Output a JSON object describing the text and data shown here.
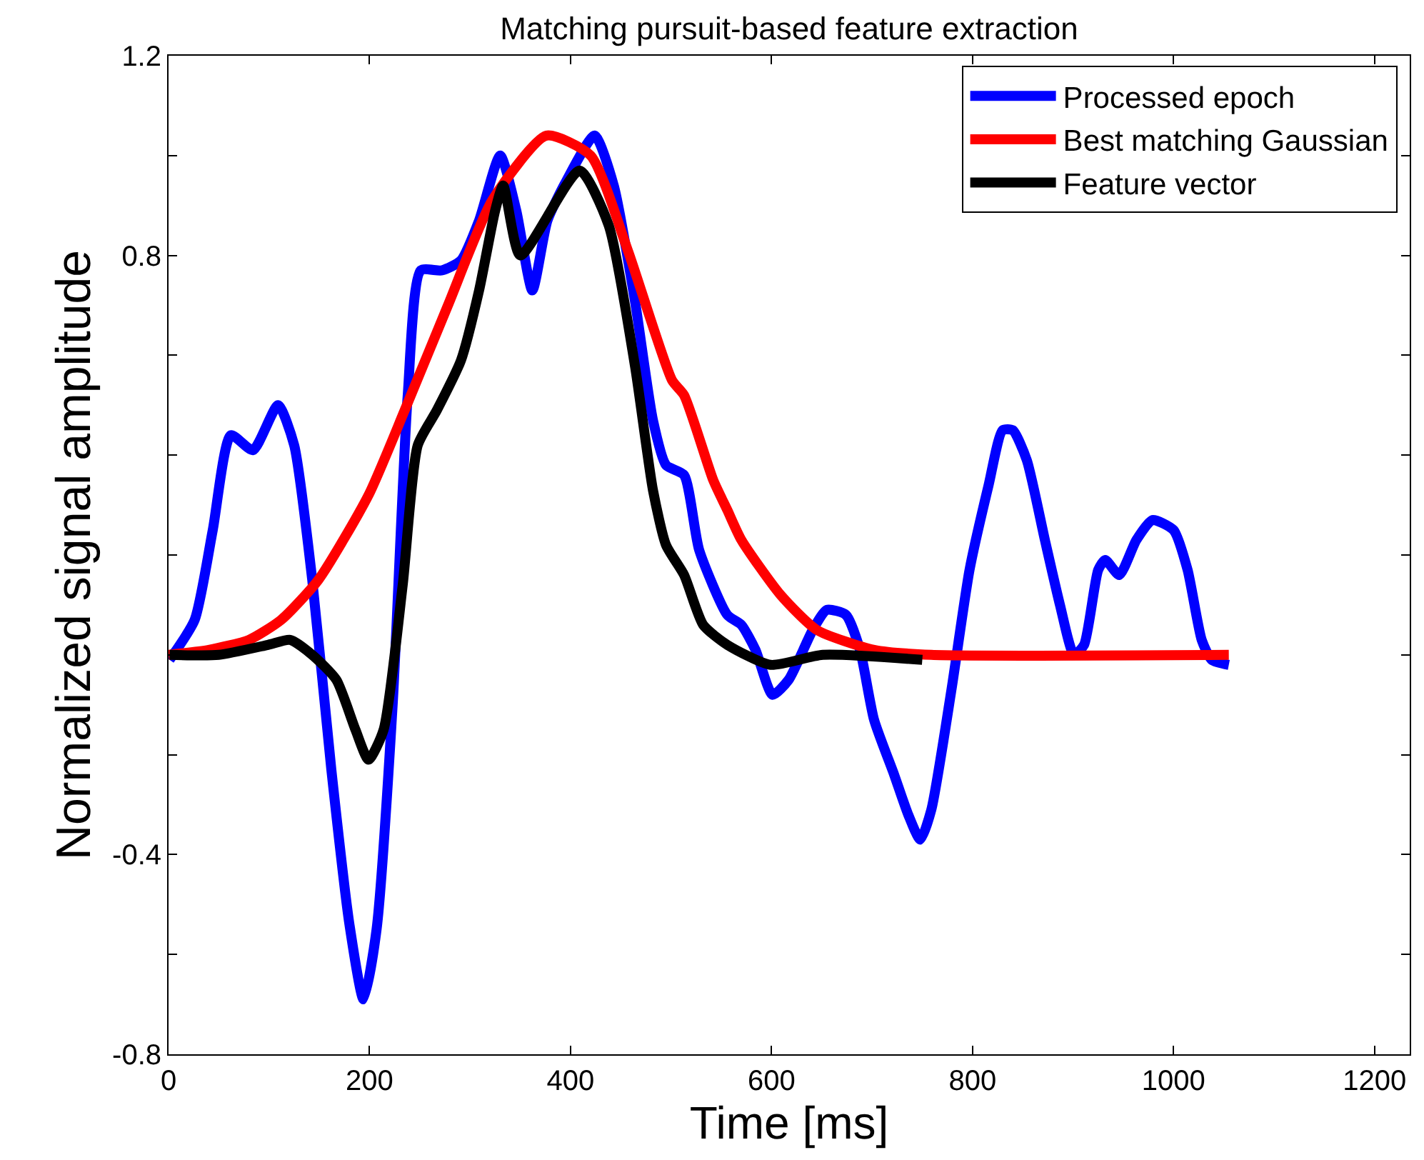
{
  "chart_data": {
    "type": "line",
    "title": "Matching pursuit-based feature extraction",
    "xlabel": "Time [ms]",
    "ylabel": "Normalized signal amplitude",
    "xlim": [
      0,
      1235
    ],
    "xticks": [
      0,
      200,
      400,
      600,
      800,
      1000,
      1200
    ],
    "ylim": [
      -0.8,
      1.2
    ],
    "yticks": [
      {
        "value": -0.8,
        "label": "-0.8"
      },
      {
        "value": -0.6,
        "label": null
      },
      {
        "value": -0.4,
        "label": "-0.4"
      },
      {
        "value": -0.2,
        "label": null
      },
      {
        "value": 0,
        "label": null
      },
      {
        "value": 0.2,
        "label": null
      },
      {
        "value": 0.4,
        "label": null
      },
      {
        "value": 0.6,
        "label": null
      },
      {
        "value": 0.8,
        "label": "0.8"
      },
      {
        "value": 1.0,
        "label": null
      },
      {
        "value": 1.2,
        "label": "1.2"
      }
    ],
    "legend": "top right",
    "marker": "none",
    "line_style": "solid",
    "series": [
      {
        "name": "Processed epoch",
        "color": "#0000ff",
        "x": [
          1,
          26,
          44,
          62,
          84,
          109,
          125,
          143,
          162,
          180,
          194,
          207,
          223,
          238,
          251,
          272,
          291,
          309,
          330,
          346,
          362,
          377,
          396,
          424,
          443,
          464,
          482,
          495,
          513,
          528,
          556,
          570,
          584,
          601,
          617,
          641,
          655,
          674,
          688,
          702,
          722,
          736,
          748,
          759,
          779,
          797,
          816,
          830,
          840,
          854,
          872,
          887,
          901,
          911,
          925,
          932,
          946,
          963,
          979,
          1000,
          1014,
          1028,
          1038,
          1055
        ],
        "values": [
          -0.01,
          0.07,
          0.25,
          0.44,
          0.41,
          0.5,
          0.42,
          0.15,
          -0.23,
          -0.54,
          -0.69,
          -0.55,
          -0.1,
          0.52,
          0.77,
          0.77,
          0.79,
          0.87,
          1.0,
          0.89,
          0.73,
          0.87,
          0.95,
          1.04,
          0.94,
          0.71,
          0.47,
          0.38,
          0.36,
          0.21,
          0.08,
          0.06,
          0.01,
          -0.08,
          -0.05,
          0.05,
          0.09,
          0.08,
          0.01,
          -0.13,
          -0.24,
          -0.32,
          -0.37,
          -0.31,
          -0.07,
          0.17,
          0.34,
          0.45,
          0.45,
          0.39,
          0.23,
          0.1,
          0.0,
          0.02,
          0.17,
          0.19,
          0.16,
          0.23,
          0.27,
          0.25,
          0.17,
          0.03,
          -0.01,
          -0.02
        ]
      },
      {
        "name": "Best matching Gaussian",
        "color": "#ff0000",
        "x": [
          0,
          40,
          80,
          112,
          149,
          199,
          235,
          278,
          322,
          376,
          420,
          457,
          501,
          513,
          542,
          556,
          570,
          609,
          645,
          702,
          759,
          1055
        ],
        "values": [
          0.0,
          0.01,
          0.03,
          0.07,
          0.15,
          0.32,
          0.49,
          0.7,
          0.91,
          1.04,
          1.0,
          0.81,
          0.55,
          0.52,
          0.35,
          0.29,
          0.23,
          0.12,
          0.05,
          0.01,
          0.0,
          0.0
        ]
      },
      {
        "name": "Feature vector",
        "color": "#000000",
        "x": [
          1,
          50,
          99,
          121,
          143,
          167,
          186,
          199,
          214,
          233,
          248,
          267,
          291,
          309,
          325,
          333,
          350,
          409,
          438,
          464,
          482,
          495,
          513,
          532,
          556,
          599,
          651,
          750
        ],
        "values": [
          0.0,
          0.0,
          0.02,
          0.03,
          0.0,
          -0.05,
          -0.15,
          -0.21,
          -0.15,
          0.14,
          0.42,
          0.49,
          0.59,
          0.73,
          0.89,
          0.94,
          0.8,
          0.97,
          0.86,
          0.58,
          0.33,
          0.22,
          0.16,
          0.06,
          0.02,
          -0.02,
          0.0,
          -0.01
        ]
      }
    ]
  }
}
